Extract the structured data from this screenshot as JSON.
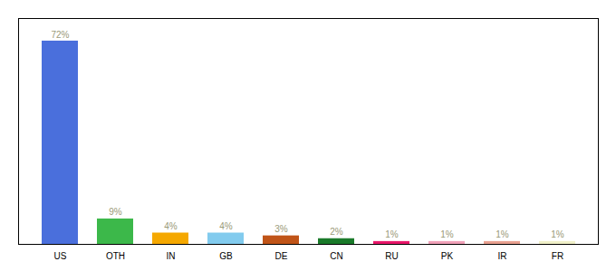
{
  "chart_data": {
    "type": "bar",
    "categories": [
      "US",
      "OTH",
      "IN",
      "GB",
      "DE",
      "CN",
      "RU",
      "PK",
      "IR",
      "FR"
    ],
    "values": [
      72,
      9,
      4,
      4,
      3,
      2,
      1,
      1,
      1,
      1
    ],
    "value_labels": [
      "72%",
      "9%",
      "4%",
      "4%",
      "3%",
      "2%",
      "1%",
      "1%",
      "1%",
      "1%"
    ],
    "colors": [
      "#4a6fdc",
      "#3cb84a",
      "#f5a800",
      "#82cbee",
      "#c05418",
      "#1a7a2a",
      "#e8176a",
      "#f0a0b8",
      "#e8a090",
      "#f0f0c8"
    ],
    "ylim": [
      0,
      80
    ],
    "data_labels": true,
    "tick_labels": "x"
  }
}
